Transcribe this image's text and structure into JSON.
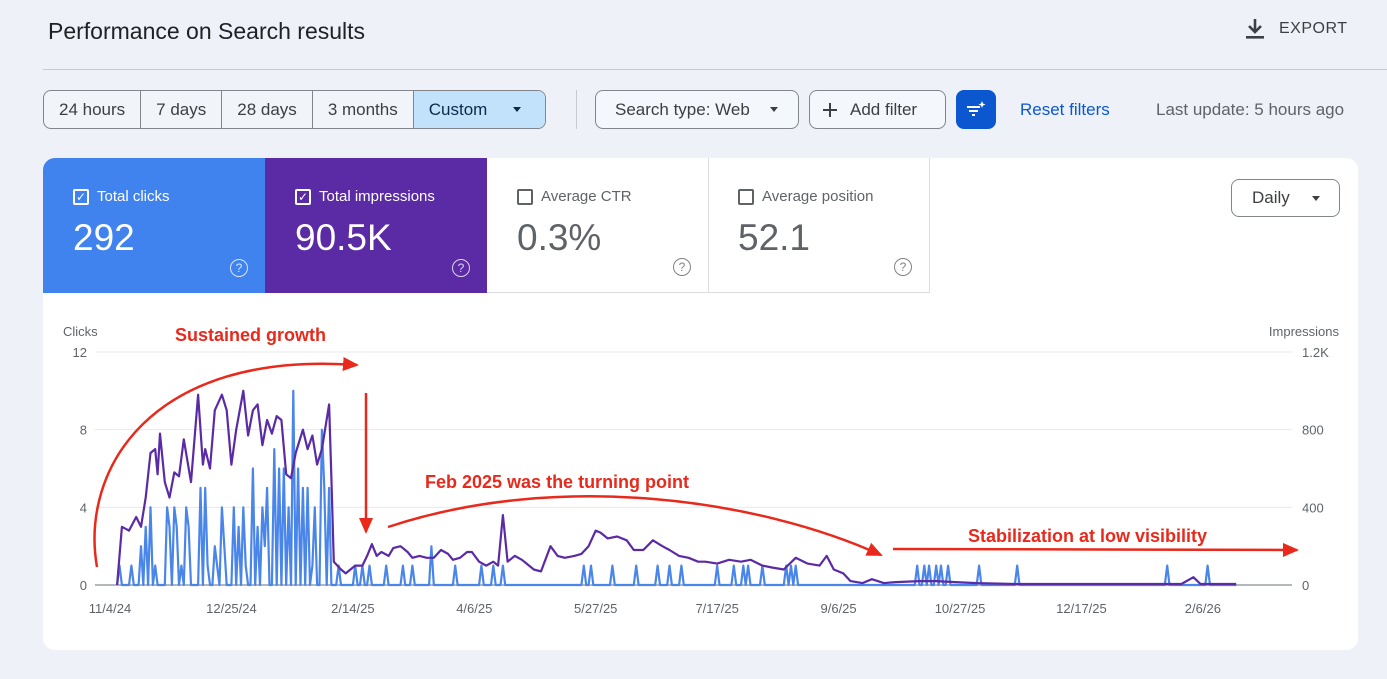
{
  "header": {
    "title": "Performance on Search results",
    "export_label": "EXPORT",
    "export_icon": "download-icon"
  },
  "filters": {
    "ranges": [
      "24 hours",
      "7 days",
      "28 days",
      "3 months",
      "Custom"
    ],
    "selected_range": "Custom",
    "search_type": "Search type: Web",
    "add_filter": "Add filter",
    "reset_filters": "Reset filters",
    "last_update": "Last update: 5 hours ago"
  },
  "metrics": [
    {
      "label": "Total clicks",
      "value": "292",
      "checked": true,
      "color": "#4083ee"
    },
    {
      "label": "Total impressions",
      "value": "90.5K",
      "checked": true,
      "color": "#5b2aa5"
    },
    {
      "label": "Average CTR",
      "value": "0.3%",
      "checked": false
    },
    {
      "label": "Average position",
      "value": "52.1",
      "checked": false
    }
  ],
  "granularity": "Daily",
  "chart_data": {
    "type": "line",
    "left_axis": {
      "label": "Clicks",
      "ticks": [
        "0",
        "4",
        "8",
        "12"
      ],
      "range": [
        0,
        12
      ]
    },
    "right_axis": {
      "label": "Impressions",
      "ticks": [
        "0",
        "400",
        "800",
        "1.2K"
      ],
      "range": [
        0,
        1200
      ]
    },
    "x_ticks": [
      "11/4/24",
      "12/25/24",
      "2/14/25",
      "4/6/25",
      "5/27/25",
      "7/17/25",
      "9/6/25",
      "10/27/25",
      "12/17/25",
      "2/6/26"
    ],
    "grid": true,
    "annotations": [
      "Sustained growth",
      "Feb 2025 was the turning point",
      "Stabilization at low visibility"
    ],
    "series": [
      {
        "name": "Impressions",
        "axis": "right",
        "color": "#5b2aa5",
        "points": [
          [
            "2024-11-07",
            0
          ],
          [
            "2024-11-09",
            300
          ],
          [
            "2024-11-12",
            280
          ],
          [
            "2024-11-15",
            350
          ],
          [
            "2024-11-17",
            300
          ],
          [
            "2024-11-19",
            450
          ],
          [
            "2024-11-21",
            680
          ],
          [
            "2024-11-23",
            700
          ],
          [
            "2024-11-24",
            570
          ],
          [
            "2024-11-25",
            780
          ],
          [
            "2024-11-27",
            530
          ],
          [
            "2024-11-29",
            450
          ],
          [
            "2024-12-01",
            580
          ],
          [
            "2024-12-03",
            560
          ],
          [
            "2024-12-05",
            750
          ],
          [
            "2024-12-08",
            530
          ],
          [
            "2024-12-11",
            980
          ],
          [
            "2024-12-13",
            620
          ],
          [
            "2024-12-14",
            700
          ],
          [
            "2024-12-16",
            600
          ],
          [
            "2024-12-18",
            900
          ],
          [
            "2024-12-21",
            980
          ],
          [
            "2024-12-23",
            900
          ],
          [
            "2024-12-25",
            620
          ],
          [
            "2024-12-27",
            800
          ],
          [
            "2024-12-30",
            1000
          ],
          [
            "2025-01-01",
            770
          ],
          [
            "2025-01-03",
            900
          ],
          [
            "2025-01-05",
            930
          ],
          [
            "2025-01-07",
            720
          ],
          [
            "2025-01-09",
            850
          ],
          [
            "2025-01-11",
            780
          ],
          [
            "2025-01-13",
            870
          ],
          [
            "2025-01-15",
            850
          ],
          [
            "2025-01-17",
            570
          ],
          [
            "2025-01-19",
            550
          ],
          [
            "2025-01-21",
            680
          ],
          [
            "2025-01-24",
            800
          ],
          [
            "2025-01-26",
            700
          ],
          [
            "2025-01-28",
            770
          ],
          [
            "2025-01-30",
            620
          ],
          [
            "2025-02-01",
            700
          ],
          [
            "2025-02-04",
            930
          ],
          [
            "2025-02-05",
            550
          ],
          [
            "2025-02-06",
            120
          ],
          [
            "2025-02-09",
            80
          ],
          [
            "2025-02-11",
            60
          ],
          [
            "2025-02-15",
            100
          ],
          [
            "2025-02-18",
            100
          ],
          [
            "2025-02-20",
            150
          ],
          [
            "2025-02-22",
            210
          ],
          [
            "2025-02-24",
            150
          ],
          [
            "2025-02-26",
            170
          ],
          [
            "2025-03-01",
            150
          ],
          [
            "2025-03-03",
            190
          ],
          [
            "2025-03-06",
            200
          ],
          [
            "2025-03-09",
            170
          ],
          [
            "2025-03-11",
            140
          ],
          [
            "2025-03-14",
            150
          ],
          [
            "2025-03-17",
            140
          ],
          [
            "2025-03-20",
            140
          ],
          [
            "2025-03-23",
            180
          ],
          [
            "2025-03-26",
            160
          ],
          [
            "2025-03-28",
            130
          ],
          [
            "2025-03-31",
            140
          ],
          [
            "2025-04-03",
            170
          ],
          [
            "2025-04-05",
            170
          ],
          [
            "2025-04-08",
            120
          ],
          [
            "2025-04-11",
            100
          ],
          [
            "2025-04-14",
            120
          ],
          [
            "2025-04-16",
            100
          ],
          [
            "2025-04-18",
            360
          ],
          [
            "2025-04-20",
            120
          ],
          [
            "2025-04-23",
            150
          ],
          [
            "2025-04-26",
            130
          ],
          [
            "2025-04-29",
            100
          ],
          [
            "2025-05-01",
            80
          ],
          [
            "2025-05-04",
            70
          ],
          [
            "2025-05-08",
            200
          ],
          [
            "2025-05-11",
            150
          ],
          [
            "2025-05-14",
            140
          ],
          [
            "2025-05-18",
            150
          ],
          [
            "2025-05-21",
            160
          ],
          [
            "2025-05-24",
            200
          ],
          [
            "2025-05-27",
            280
          ],
          [
            "2025-05-29",
            270
          ],
          [
            "2025-06-01",
            240
          ],
          [
            "2025-06-05",
            250
          ],
          [
            "2025-06-09",
            230
          ],
          [
            "2025-06-12",
            180
          ],
          [
            "2025-06-16",
            180
          ],
          [
            "2025-06-20",
            230
          ],
          [
            "2025-06-24",
            200
          ],
          [
            "2025-06-27",
            180
          ],
          [
            "2025-07-01",
            150
          ],
          [
            "2025-07-05",
            140
          ],
          [
            "2025-07-09",
            120
          ],
          [
            "2025-07-12",
            120
          ],
          [
            "2025-07-17",
            110
          ],
          [
            "2025-07-22",
            130
          ],
          [
            "2025-07-27",
            120
          ],
          [
            "2025-07-31",
            130
          ],
          [
            "2025-08-05",
            100
          ],
          [
            "2025-08-09",
            90
          ],
          [
            "2025-08-14",
            80
          ],
          [
            "2025-08-19",
            140
          ],
          [
            "2025-08-24",
            110
          ],
          [
            "2025-08-29",
            100
          ],
          [
            "2025-09-01",
            150
          ],
          [
            "2025-09-04",
            80
          ],
          [
            "2025-09-08",
            60
          ],
          [
            "2025-09-11",
            20
          ],
          [
            "2025-09-16",
            10
          ],
          [
            "2025-09-20",
            30
          ],
          [
            "2025-09-25",
            10
          ],
          [
            "2025-09-30",
            15
          ],
          [
            "2025-10-10",
            20
          ],
          [
            "2025-10-17",
            20
          ],
          [
            "2025-10-25",
            15
          ],
          [
            "2025-11-03",
            10
          ],
          [
            "2025-11-19",
            5
          ],
          [
            "2025-12-08",
            5
          ],
          [
            "2025-12-29",
            5
          ],
          [
            "2026-01-12",
            5
          ],
          [
            "2026-01-28",
            5
          ],
          [
            "2026-02-02",
            40
          ],
          [
            "2026-02-05",
            5
          ],
          [
            "2026-02-20",
            5
          ]
        ]
      },
      {
        "name": "Clicks",
        "axis": "left",
        "color": "#4a86ea",
        "range": [
          "2024-11-07",
          "2026-02-20"
        ],
        "nonzero_points": [
          [
            "2024-11-08",
            1
          ],
          [
            "2024-11-13",
            1
          ],
          [
            "2024-11-17",
            2
          ],
          [
            "2024-11-19",
            3
          ],
          [
            "2024-11-21",
            4
          ],
          [
            "2024-11-23",
            1
          ],
          [
            "2024-11-28",
            4
          ],
          [
            "2024-11-29",
            3
          ],
          [
            "2024-12-01",
            4
          ],
          [
            "2024-12-02",
            3
          ],
          [
            "2024-12-04",
            1
          ],
          [
            "2024-12-06",
            4
          ],
          [
            "2024-12-07",
            3
          ],
          [
            "2024-12-12",
            5
          ],
          [
            "2024-12-14",
            5
          ],
          [
            "2024-12-15",
            1
          ],
          [
            "2024-12-18",
            2
          ],
          [
            "2024-12-19",
            1
          ],
          [
            "2024-12-21",
            4
          ],
          [
            "2024-12-22",
            2
          ],
          [
            "2024-12-26",
            4
          ],
          [
            "2024-12-28",
            3
          ],
          [
            "2024-12-30",
            4
          ],
          [
            "2024-12-31",
            1
          ],
          [
            "2025-01-03",
            6
          ],
          [
            "2025-01-05",
            3
          ],
          [
            "2025-01-07",
            4
          ],
          [
            "2025-01-08",
            2
          ],
          [
            "2025-01-09",
            5
          ],
          [
            "2025-01-12",
            7
          ],
          [
            "2025-01-14",
            6
          ],
          [
            "2025-01-16",
            6
          ],
          [
            "2025-01-18",
            4
          ],
          [
            "2025-01-20",
            10
          ],
          [
            "2025-01-22",
            6
          ],
          [
            "2025-01-24",
            5
          ],
          [
            "2025-01-26",
            5
          ],
          [
            "2025-01-28",
            1
          ],
          [
            "2025-01-29",
            4
          ],
          [
            "2025-02-01",
            8
          ],
          [
            "2025-02-02",
            5
          ],
          [
            "2025-02-04",
            5
          ],
          [
            "2025-02-08",
            1
          ],
          [
            "2025-02-15",
            1
          ],
          [
            "2025-02-18",
            1
          ],
          [
            "2025-02-21",
            1
          ],
          [
            "2025-02-28",
            1
          ],
          [
            "2025-03-07",
            1
          ],
          [
            "2025-03-11",
            1
          ],
          [
            "2025-03-19",
            2
          ],
          [
            "2025-03-29",
            1
          ],
          [
            "2025-04-09",
            1
          ],
          [
            "2025-04-14",
            1
          ],
          [
            "2025-04-18",
            1
          ],
          [
            "2025-05-22",
            1
          ],
          [
            "2025-05-25",
            1
          ],
          [
            "2025-06-03",
            1
          ],
          [
            "2025-06-13",
            1
          ],
          [
            "2025-06-22",
            1
          ],
          [
            "2025-06-27",
            1
          ],
          [
            "2025-07-02",
            1
          ],
          [
            "2025-07-17",
            1
          ],
          [
            "2025-07-24",
            1
          ],
          [
            "2025-07-28",
            1
          ],
          [
            "2025-07-30",
            1
          ],
          [
            "2025-08-05",
            1
          ],
          [
            "2025-08-15",
            1
          ],
          [
            "2025-08-17",
            1
          ],
          [
            "2025-08-19",
            1
          ],
          [
            "2025-10-09",
            1
          ],
          [
            "2025-10-12",
            1
          ],
          [
            "2025-10-14",
            1
          ],
          [
            "2025-10-17",
            1
          ],
          [
            "2025-10-19",
            1
          ],
          [
            "2025-10-22",
            1
          ],
          [
            "2025-11-04",
            1
          ],
          [
            "2025-11-20",
            1
          ],
          [
            "2026-01-22",
            1
          ],
          [
            "2026-02-08",
            1
          ]
        ]
      }
    ]
  }
}
